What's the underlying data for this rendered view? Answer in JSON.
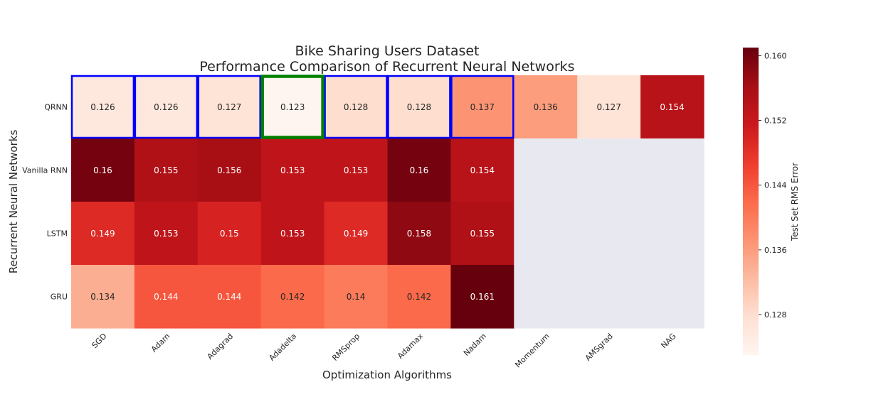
{
  "chart_data": {
    "type": "heatmap",
    "title": "Bike Sharing Users Dataset",
    "subtitle": "Performance Comparison of Recurrent Neural Networks",
    "xlabel": "Optimization Algorithms",
    "ylabel": "Recurrent Neural Networks",
    "colorbar_label": "Test Set RMS Error",
    "x_categories": [
      "SGD",
      "Adam",
      "Adagrad",
      "Adadelta",
      "RMSprop",
      "Adamax",
      "Nadam",
      "Momentum",
      "AMSgrad",
      "NAG"
    ],
    "y_categories": [
      "QRNN",
      "Vanilla RNN",
      "LSTM",
      "GRU"
    ],
    "values": [
      [
        0.126,
        0.126,
        0.127,
        0.123,
        0.128,
        0.128,
        0.137,
        0.136,
        0.127,
        0.154
      ],
      [
        0.16,
        0.155,
        0.156,
        0.153,
        0.153,
        0.16,
        0.154,
        null,
        null,
        null
      ],
      [
        0.149,
        0.153,
        0.15,
        0.153,
        0.149,
        0.158,
        0.155,
        null,
        null,
        null
      ],
      [
        0.134,
        0.144,
        0.144,
        0.142,
        0.14,
        0.142,
        0.161,
        null,
        null,
        null
      ]
    ],
    "value_labels": [
      [
        "0.126",
        "0.126",
        "0.127",
        "0.123",
        "0.128",
        "0.128",
        "0.137",
        "0.136",
        "0.127",
        "0.154"
      ],
      [
        "0.16",
        "0.155",
        "0.156",
        "0.153",
        "0.153",
        "0.16",
        "0.154",
        "",
        "",
        ""
      ],
      [
        "0.149",
        "0.153",
        "0.15",
        "0.153",
        "0.149",
        "0.158",
        "0.155",
        "",
        "",
        ""
      ],
      [
        "0.134",
        "0.144",
        "0.144",
        "0.142",
        "0.14",
        "0.142",
        "0.161",
        "",
        "",
        ""
      ]
    ],
    "colorscale": "Reds",
    "vmin": 0.123,
    "vmax": 0.161,
    "colorbar_ticks": [
      "0.128",
      "0.136",
      "0.144",
      "0.152",
      "0.160"
    ],
    "missing_color": "#e8e8f1",
    "highlight": {
      "blue_cells": [
        [
          0,
          0
        ],
        [
          0,
          1
        ],
        [
          0,
          2
        ],
        [
          0,
          4
        ],
        [
          0,
          5
        ],
        [
          0,
          6
        ]
      ],
      "green_cells": [
        [
          0,
          3
        ]
      ],
      "blue_color": "#0000ff",
      "green_color": "#008000"
    }
  }
}
